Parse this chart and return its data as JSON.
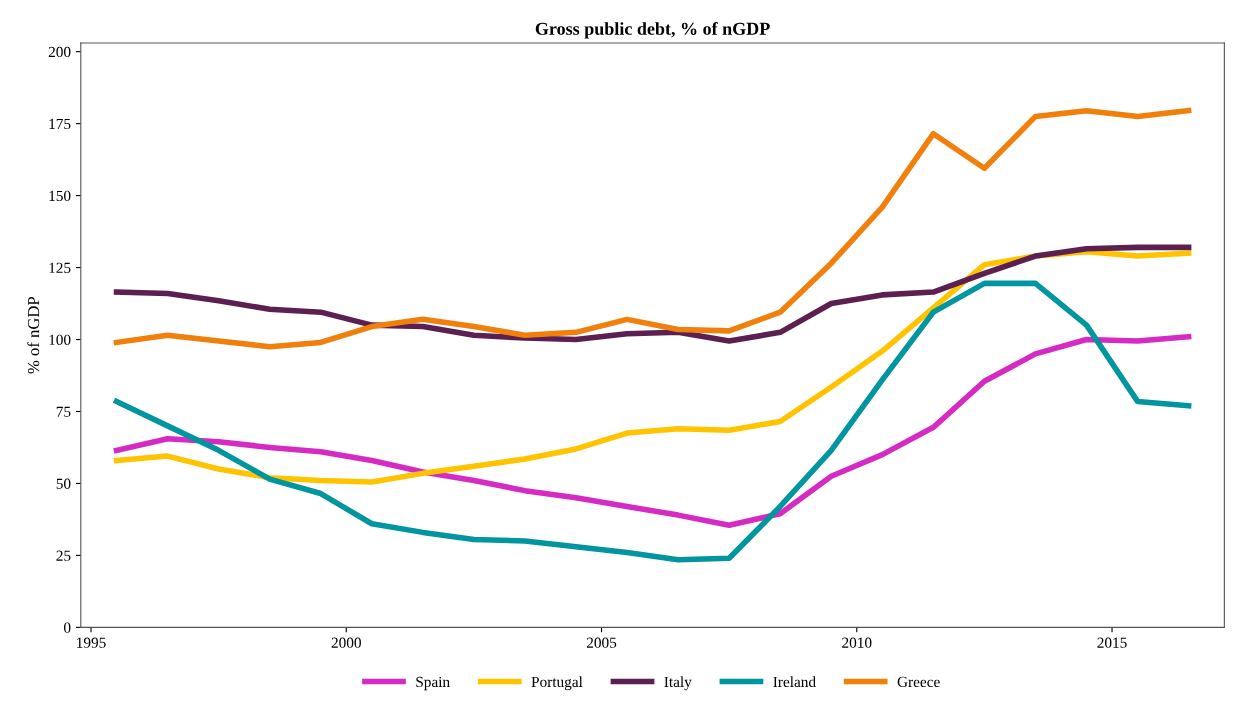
{
  "chart_data": {
    "type": "line",
    "title": "Gross public debt, % of nGDP",
    "ylabel": "% of nGDP",
    "x": [
      1995.5,
      1996.5,
      1997.5,
      1998.5,
      1999.5,
      2000.5,
      2001.5,
      2002.5,
      2003.5,
      2004.5,
      2005.5,
      2006.5,
      2007.5,
      2008.5,
      2009.5,
      2010.5,
      2011.5,
      2012.5,
      2013.5,
      2014.5,
      2015.5,
      2016.5
    ],
    "series": [
      {
        "name": "Spain",
        "color": "#d62ac4",
        "values": [
          61.5,
          65.5,
          64.5,
          62.5,
          61,
          58,
          54,
          51,
          47.5,
          45,
          42,
          39,
          35.5,
          39.5,
          52.5,
          60,
          69.5,
          85.5,
          95,
          100,
          99.5,
          101
        ]
      },
      {
        "name": "Portugal",
        "color": "#ffc300",
        "values": [
          58,
          59.5,
          55,
          52,
          51,
          50.5,
          53.5,
          56,
          58.5,
          62,
          67.5,
          69,
          68.5,
          71.5,
          83.5,
          96,
          111,
          126,
          129,
          130.5,
          129,
          130
        ]
      },
      {
        "name": "Italy",
        "color": "#5c1f52",
        "values": [
          116.5,
          116,
          113.5,
          110.5,
          109.5,
          105,
          104.5,
          101.5,
          100.5,
          100,
          102,
          102.5,
          99.5,
          102.5,
          112.5,
          115.5,
          116.5,
          123,
          129,
          131.5,
          132,
          132
        ]
      },
      {
        "name": "Ireland",
        "color": "#00959f",
        "values": [
          78.5,
          70,
          61.5,
          51.5,
          46.5,
          36,
          33,
          30.5,
          30,
          28,
          26,
          23.5,
          24,
          42,
          61.5,
          86,
          109.5,
          119.5,
          119.5,
          105,
          78.5,
          77
        ]
      },
      {
        "name": "Greece",
        "color": "#f07f0b",
        "values": [
          99,
          101.5,
          99.5,
          97.5,
          99,
          104.5,
          107,
          104.5,
          101.5,
          102.5,
          107,
          103.5,
          103,
          109.5,
          126.5,
          146,
          171.5,
          159.5,
          177.5,
          179.5,
          177.5,
          179.5
        ]
      }
    ],
    "xlim": [
      1994.8,
      2017.2
    ],
    "xticks": [
      1995,
      2000,
      2005,
      2010,
      2015
    ],
    "ylim": [
      0,
      203
    ],
    "yticks": [
      0,
      25,
      50,
      75,
      100,
      125,
      150,
      175,
      200
    ],
    "grid": false,
    "legend": "bottom",
    "marker": "none",
    "line_style": "solid"
  }
}
